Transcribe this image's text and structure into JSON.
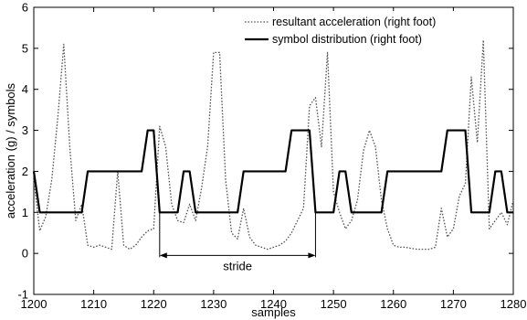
{
  "chart_data": {
    "type": "line",
    "xlabel": "samples",
    "ylabel": "acceleration (g) / symbols",
    "xlim": [
      1200,
      1280
    ],
    "ylim": [
      -1,
      6
    ],
    "xticks": [
      1200,
      1210,
      1220,
      1230,
      1240,
      1250,
      1260,
      1270,
      1280
    ],
    "yticks": [
      -1,
      0,
      1,
      2,
      3,
      4,
      5,
      6
    ],
    "grid": false,
    "legend_position": "top-right",
    "series": [
      {
        "name": "resultant acceleration (right foot)",
        "style": "dotted",
        "color": "#555555",
        "x": [
          1200,
          1201,
          1202,
          1203,
          1204,
          1205,
          1206,
          1207,
          1208,
          1209,
          1210,
          1211,
          1212,
          1213,
          1214,
          1215,
          1216,
          1217,
          1218,
          1219,
          1220,
          1221,
          1222,
          1223,
          1224,
          1225,
          1226,
          1227,
          1228,
          1229,
          1230,
          1231,
          1232,
          1233,
          1234,
          1235,
          1236,
          1237,
          1238,
          1239,
          1240,
          1241,
          1242,
          1243,
          1244,
          1245,
          1246,
          1247,
          1248,
          1249,
          1250,
          1251,
          1252,
          1253,
          1254,
          1255,
          1256,
          1257,
          1258,
          1259,
          1260,
          1261,
          1262,
          1263,
          1264,
          1265,
          1266,
          1267,
          1268,
          1269,
          1270,
          1271,
          1272,
          1273,
          1274,
          1275,
          1276,
          1277,
          1278,
          1279,
          1280
        ],
        "y": [
          1.8,
          0.55,
          0.9,
          1.8,
          3.3,
          5.1,
          2.6,
          0.8,
          1.2,
          0.2,
          0.15,
          0.2,
          0.15,
          0.1,
          2.0,
          0.2,
          0.1,
          0.2,
          0.4,
          0.55,
          0.6,
          3.1,
          2.6,
          1.2,
          0.8,
          0.75,
          1.2,
          0.8,
          1.6,
          2.6,
          4.9,
          4.9,
          1.8,
          0.5,
          0.35,
          1.1,
          0.4,
          0.2,
          0.15,
          0.1,
          0.15,
          0.2,
          0.3,
          0.5,
          0.8,
          1.1,
          3.6,
          3.8,
          2.6,
          4.9,
          1.5,
          1.0,
          0.6,
          0.8,
          1.3,
          2.5,
          3.0,
          2.6,
          1.3,
          0.6,
          0.2,
          0.15,
          0.15,
          0.12,
          0.1,
          0.1,
          0.1,
          0.15,
          1.1,
          0.4,
          0.6,
          1.4,
          1.7,
          4.3,
          2.7,
          5.2,
          0.6,
          0.8,
          1.0,
          0.7,
          1.3
        ]
      },
      {
        "name": "symbol distribution (right foot)",
        "style": "solid",
        "color": "#000000",
        "x": [
          1200,
          1201,
          1202,
          1203,
          1204,
          1205,
          1206,
          1207,
          1208,
          1209,
          1210,
          1211,
          1212,
          1213,
          1214,
          1215,
          1216,
          1217,
          1218,
          1219,
          1220,
          1221,
          1222,
          1223,
          1224,
          1225,
          1226,
          1227,
          1228,
          1229,
          1230,
          1231,
          1232,
          1233,
          1234,
          1235,
          1236,
          1237,
          1238,
          1239,
          1240,
          1241,
          1242,
          1243,
          1244,
          1245,
          1246,
          1247,
          1248,
          1249,
          1250,
          1251,
          1252,
          1253,
          1254,
          1255,
          1256,
          1257,
          1258,
          1259,
          1260,
          1261,
          1262,
          1263,
          1264,
          1265,
          1266,
          1267,
          1268,
          1269,
          1270,
          1271,
          1272,
          1273,
          1274,
          1275,
          1276,
          1277,
          1278,
          1279,
          1280
        ],
        "y": [
          2,
          1,
          1,
          1,
          1,
          1,
          1,
          1,
          1,
          2,
          2,
          2,
          2,
          2,
          2,
          2,
          2,
          2,
          2,
          3,
          3,
          1,
          1,
          1,
          1,
          2,
          2,
          1,
          1,
          1,
          1,
          1,
          1,
          1,
          1,
          2,
          2,
          2,
          2,
          2,
          2,
          2,
          2,
          3,
          3,
          3,
          3,
          1,
          1,
          1,
          1,
          2,
          2,
          1,
          1,
          1,
          1,
          1,
          1,
          2,
          2,
          2,
          2,
          2,
          2,
          2,
          2,
          2,
          2,
          3,
          3,
          3,
          3,
          1,
          1,
          1,
          1,
          2,
          2,
          1,
          1
        ]
      }
    ],
    "annotations": [
      {
        "text": "stride",
        "x_start": 1221,
        "x_end": 1247,
        "y": -0.05
      }
    ]
  }
}
